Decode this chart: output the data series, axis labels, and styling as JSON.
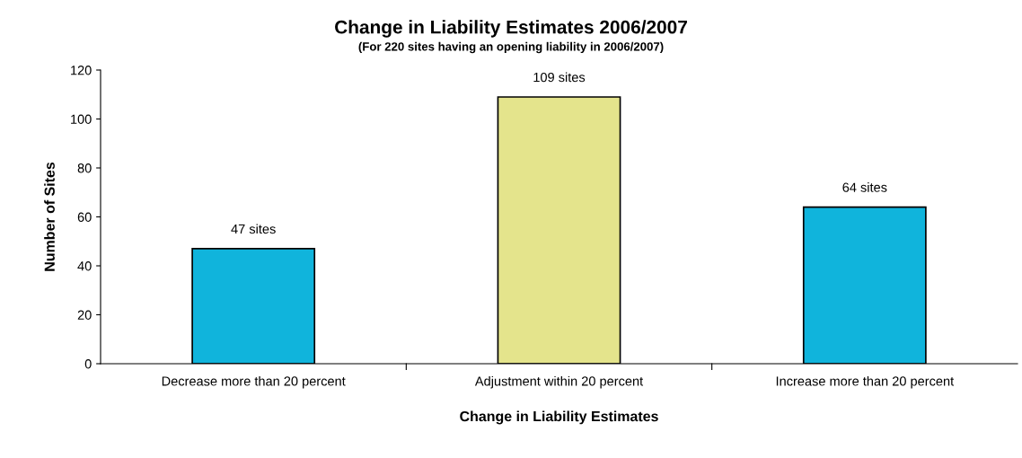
{
  "chart_data": {
    "type": "bar",
    "title": "Change in Liability Estimates 2006/2007",
    "subtitle": "(For 220 sites having an opening liability in 2006/2007)",
    "xlabel": "Change in Liability Estimates",
    "ylabel": "Number of Sites",
    "categories": [
      "Decrease more than 20 percent",
      "Adjustment within 20 percent",
      "Increase more than 20 percent"
    ],
    "values": [
      47,
      109,
      64
    ],
    "colors": [
      "#10b4dc",
      "#e4e48c",
      "#10b4dc"
    ],
    "value_labels": [
      "47 sites",
      "109 sites",
      "64 sites"
    ],
    "ylim": [
      0,
      120
    ],
    "yticks": [
      0,
      20,
      40,
      60,
      80,
      100,
      120
    ],
    "grid": false,
    "legend": false
  }
}
